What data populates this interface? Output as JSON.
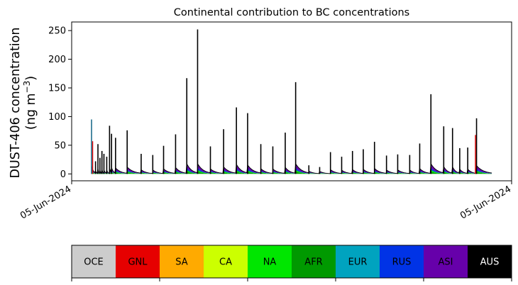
{
  "chart_data": {
    "type": "area",
    "title": "Continental contribution to BC concentrations",
    "ylabel_line1": "DUST-406 concentration",
    "ylabel_line2_prefix": "(ng m",
    "ylabel_sup": "−3",
    "ylabel_line2_suffix": ")",
    "ylim": [
      -12,
      265
    ],
    "yticks": [
      0,
      50,
      100,
      150,
      200,
      250
    ],
    "xtick_labels": [
      "05-Jun-2024",
      "05-Jun-2024"
    ],
    "grid": false,
    "legend_placement": "bottom",
    "spikes": [
      {
        "x": 0.0,
        "v": 95
      },
      {
        "x": 0.01,
        "v": 22
      },
      {
        "x": 0.016,
        "v": 52
      },
      {
        "x": 0.021,
        "v": 28
      },
      {
        "x": 0.026,
        "v": 40
      },
      {
        "x": 0.031,
        "v": 35
      },
      {
        "x": 0.038,
        "v": 30
      },
      {
        "x": 0.045,
        "v": 84
      },
      {
        "x": 0.05,
        "v": 70
      },
      {
        "x": 0.06,
        "v": 63
      },
      {
        "x": 0.089,
        "v": 76
      },
      {
        "x": 0.124,
        "v": 35
      },
      {
        "x": 0.153,
        "v": 33
      },
      {
        "x": 0.18,
        "v": 49
      },
      {
        "x": 0.21,
        "v": 69
      },
      {
        "x": 0.238,
        "v": 167
      },
      {
        "x": 0.265,
        "v": 252
      },
      {
        "x": 0.297,
        "v": 48
      },
      {
        "x": 0.33,
        "v": 78
      },
      {
        "x": 0.362,
        "v": 116
      },
      {
        "x": 0.39,
        "v": 106
      },
      {
        "x": 0.423,
        "v": 52
      },
      {
        "x": 0.453,
        "v": 48
      },
      {
        "x": 0.484,
        "v": 72
      },
      {
        "x": 0.51,
        "v": 160
      },
      {
        "x": 0.543,
        "v": 15
      },
      {
        "x": 0.57,
        "v": 12
      },
      {
        "x": 0.597,
        "v": 38
      },
      {
        "x": 0.625,
        "v": 30
      },
      {
        "x": 0.652,
        "v": 40
      },
      {
        "x": 0.679,
        "v": 43
      },
      {
        "x": 0.707,
        "v": 56
      },
      {
        "x": 0.737,
        "v": 32
      },
      {
        "x": 0.765,
        "v": 34
      },
      {
        "x": 0.795,
        "v": 33
      },
      {
        "x": 0.82,
        "v": 53
      },
      {
        "x": 0.848,
        "v": 139
      },
      {
        "x": 0.88,
        "v": 83
      },
      {
        "x": 0.902,
        "v": 80
      },
      {
        "x": 0.92,
        "v": 45
      },
      {
        "x": 0.94,
        "v": 46
      },
      {
        "x": 0.962,
        "v": 97
      }
    ],
    "legend": [
      {
        "name": "OCE",
        "color": "#cccccc",
        "text_color": "#000000"
      },
      {
        "name": "GNL",
        "color": "#e60000",
        "text_color": "#000000"
      },
      {
        "name": "SA",
        "color": "#ffaa00",
        "text_color": "#000000"
      },
      {
        "name": "CA",
        "color": "#ccff00",
        "text_color": "#000000"
      },
      {
        "name": "NA",
        "color": "#00e600",
        "text_color": "#000000"
      },
      {
        "name": "AFR",
        "color": "#009900",
        "text_color": "#000000"
      },
      {
        "name": "EUR",
        "color": "#00a3bf",
        "text_color": "#000000"
      },
      {
        "name": "RUS",
        "color": "#0033e6",
        "text_color": "#000000"
      },
      {
        "name": "ASI",
        "color": "#6600aa",
        "text_color": "#000000"
      },
      {
        "name": "AUS",
        "color": "#000000",
        "text_color": "#ffffff"
      }
    ]
  }
}
